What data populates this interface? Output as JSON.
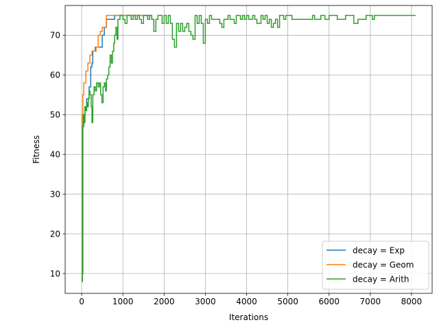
{
  "chart_data": {
    "type": "line",
    "title": "",
    "xlabel": "Iterations",
    "ylabel": "Fitness",
    "xlim": [
      -400,
      8500
    ],
    "ylim": [
      5,
      77.5
    ],
    "xticks": [
      0,
      1000,
      2000,
      3000,
      4000,
      5000,
      6000,
      7000,
      8000
    ],
    "yticks": [
      10,
      20,
      30,
      40,
      50,
      60,
      70
    ],
    "grid": true,
    "legend_position": "lower-right",
    "series": [
      {
        "name": "decay = Exp",
        "color": "#1f77b4",
        "points": [
          [
            0,
            8
          ],
          [
            20,
            10
          ],
          [
            30,
            47
          ],
          [
            50,
            50
          ],
          [
            80,
            52
          ],
          [
            120,
            54
          ],
          [
            150,
            54
          ],
          [
            180,
            57
          ],
          [
            200,
            57
          ],
          [
            220,
            62
          ],
          [
            250,
            63
          ],
          [
            270,
            66
          ],
          [
            300,
            66
          ],
          [
            330,
            67
          ],
          [
            400,
            67
          ],
          [
            450,
            67
          ],
          [
            500,
            70
          ],
          [
            550,
            72
          ],
          [
            600,
            74
          ],
          [
            700,
            74
          ],
          [
            750,
            74
          ],
          [
            800,
            75
          ],
          [
            1000,
            75
          ],
          [
            1200,
            75
          ],
          [
            1500,
            75
          ],
          [
            1700,
            75
          ]
        ]
      },
      {
        "name": "decay = Geom",
        "color": "#ff7f0e",
        "points": [
          [
            0,
            8
          ],
          [
            15,
            50
          ],
          [
            30,
            55
          ],
          [
            50,
            58
          ],
          [
            80,
            58
          ],
          [
            100,
            61
          ],
          [
            150,
            63
          ],
          [
            200,
            65
          ],
          [
            250,
            66
          ],
          [
            300,
            66
          ],
          [
            350,
            67
          ],
          [
            400,
            70
          ],
          [
            450,
            71
          ],
          [
            500,
            72
          ],
          [
            550,
            72
          ],
          [
            600,
            75
          ],
          [
            800,
            75
          ],
          [
            1000,
            75
          ],
          [
            1200,
            75
          ],
          [
            1400,
            75
          ],
          [
            1600,
            75
          ]
        ]
      },
      {
        "name": "decay = Arith",
        "color": "#2ca02c",
        "points": [
          [
            0,
            8
          ],
          [
            20,
            47
          ],
          [
            40,
            50
          ],
          [
            60,
            48
          ],
          [
            80,
            52
          ],
          [
            100,
            51
          ],
          [
            120,
            53
          ],
          [
            140,
            52
          ],
          [
            160,
            54
          ],
          [
            180,
            56
          ],
          [
            200,
            55
          ],
          [
            230,
            52
          ],
          [
            250,
            48
          ],
          [
            270,
            55
          ],
          [
            300,
            57
          ],
          [
            330,
            56
          ],
          [
            360,
            58
          ],
          [
            400,
            57
          ],
          [
            430,
            58
          ],
          [
            460,
            55
          ],
          [
            490,
            53
          ],
          [
            520,
            57
          ],
          [
            550,
            58
          ],
          [
            580,
            56
          ],
          [
            600,
            59
          ],
          [
            630,
            60
          ],
          [
            660,
            62
          ],
          [
            690,
            65
          ],
          [
            720,
            63
          ],
          [
            750,
            66
          ],
          [
            780,
            68
          ],
          [
            800,
            70
          ],
          [
            830,
            72
          ],
          [
            860,
            69
          ],
          [
            880,
            74
          ],
          [
            900,
            74
          ],
          [
            930,
            75
          ],
          [
            960,
            75
          ],
          [
            1000,
            74
          ],
          [
            1050,
            73
          ],
          [
            1100,
            75
          ],
          [
            1150,
            75
          ],
          [
            1200,
            74
          ],
          [
            1250,
            75
          ],
          [
            1300,
            74
          ],
          [
            1350,
            75
          ],
          [
            1400,
            74
          ],
          [
            1450,
            73
          ],
          [
            1500,
            75
          ],
          [
            1550,
            75
          ],
          [
            1600,
            74
          ],
          [
            1650,
            75
          ],
          [
            1700,
            74
          ],
          [
            1750,
            71
          ],
          [
            1800,
            74
          ],
          [
            1850,
            75
          ],
          [
            1900,
            75
          ],
          [
            1950,
            73
          ],
          [
            2000,
            75
          ],
          [
            2050,
            73
          ],
          [
            2100,
            75
          ],
          [
            2150,
            73
          ],
          [
            2200,
            69
          ],
          [
            2250,
            67
          ],
          [
            2300,
            73
          ],
          [
            2350,
            71
          ],
          [
            2400,
            73
          ],
          [
            2450,
            71
          ],
          [
            2500,
            72
          ],
          [
            2550,
            73
          ],
          [
            2600,
            71
          ],
          [
            2650,
            70
          ],
          [
            2700,
            69
          ],
          [
            2750,
            75
          ],
          [
            2800,
            73
          ],
          [
            2850,
            75
          ],
          [
            2900,
            73
          ],
          [
            2950,
            68
          ],
          [
            3000,
            74
          ],
          [
            3050,
            73
          ],
          [
            3100,
            75
          ],
          [
            3150,
            74
          ],
          [
            3200,
            74
          ],
          [
            3250,
            74
          ],
          [
            3300,
            74
          ],
          [
            3350,
            73
          ],
          [
            3400,
            72
          ],
          [
            3450,
            74
          ],
          [
            3500,
            74
          ],
          [
            3550,
            75
          ],
          [
            3600,
            74
          ],
          [
            3650,
            74
          ],
          [
            3700,
            73
          ],
          [
            3750,
            75
          ],
          [
            3800,
            75
          ],
          [
            3850,
            74
          ],
          [
            3900,
            75
          ],
          [
            3950,
            74
          ],
          [
            4000,
            75
          ],
          [
            4050,
            74
          ],
          [
            4100,
            74
          ],
          [
            4150,
            75
          ],
          [
            4200,
            74
          ],
          [
            4250,
            73
          ],
          [
            4300,
            73
          ],
          [
            4350,
            75
          ],
          [
            4400,
            74
          ],
          [
            4450,
            75
          ],
          [
            4500,
            73
          ],
          [
            4550,
            74
          ],
          [
            4600,
            72
          ],
          [
            4650,
            73
          ],
          [
            4700,
            74
          ],
          [
            4750,
            72
          ],
          [
            4800,
            75
          ],
          [
            4850,
            75
          ],
          [
            4900,
            74
          ],
          [
            4950,
            75
          ],
          [
            5000,
            75
          ],
          [
            5100,
            74
          ],
          [
            5200,
            74
          ],
          [
            5300,
            74
          ],
          [
            5400,
            74
          ],
          [
            5500,
            74
          ],
          [
            5600,
            75
          ],
          [
            5650,
            74
          ],
          [
            5700,
            74
          ],
          [
            5800,
            75
          ],
          [
            5900,
            74
          ],
          [
            6000,
            75
          ],
          [
            6100,
            75
          ],
          [
            6200,
            74
          ],
          [
            6300,
            74
          ],
          [
            6400,
            75
          ],
          [
            6500,
            75
          ],
          [
            6600,
            73
          ],
          [
            6700,
            74
          ],
          [
            6800,
            74
          ],
          [
            6900,
            75
          ],
          [
            7000,
            75
          ],
          [
            7050,
            74
          ],
          [
            7100,
            75
          ],
          [
            7300,
            75
          ],
          [
            7500,
            75
          ],
          [
            7700,
            75
          ],
          [
            7900,
            75
          ],
          [
            8100,
            75
          ]
        ]
      }
    ]
  }
}
